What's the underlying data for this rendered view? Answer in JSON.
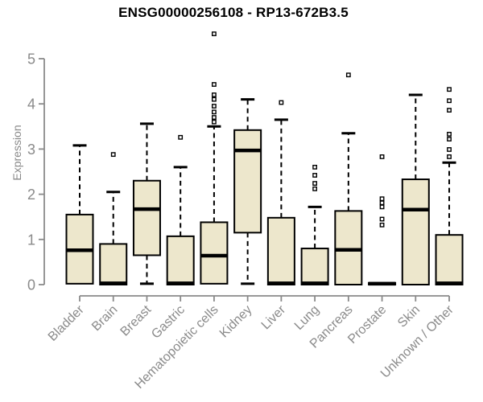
{
  "chart_data": {
    "type": "boxplot",
    "title": "ENSG00000256108 - RP13-672B3.5",
    "ylabel": "Expression",
    "xlabel": "",
    "ylim": [
      0,
      5
    ],
    "yticks": [
      0,
      1,
      2,
      3,
      4,
      5
    ],
    "grid": false,
    "legend": "none",
    "categories": [
      "Bladder",
      "Brain",
      "Breast",
      "Gastric",
      "Hematopoietic cells",
      "Kidney",
      "Liver",
      "Lung",
      "Pancreas",
      "Prostate",
      "Skin",
      "Unknown / Other"
    ],
    "boxes": [
      {
        "category": "Bladder",
        "whisker_low": 0.02,
        "q1": 0.02,
        "median": 0.76,
        "q3": 1.55,
        "whisker_high": 3.08,
        "outliers": []
      },
      {
        "category": "Brain",
        "whisker_low": 0.0,
        "q1": 0.0,
        "median": 0.03,
        "q3": 0.9,
        "whisker_high": 2.05,
        "outliers": [
          2.88
        ]
      },
      {
        "category": "Breast",
        "whisker_low": 0.02,
        "q1": 0.65,
        "median": 1.67,
        "q3": 2.3,
        "whisker_high": 3.56,
        "outliers": []
      },
      {
        "category": "Gastric",
        "whisker_low": 0.0,
        "q1": 0.0,
        "median": 0.03,
        "q3": 1.07,
        "whisker_high": 2.6,
        "outliers": [
          3.26
        ]
      },
      {
        "category": "Hematopoietic cells",
        "whisker_low": 0.02,
        "q1": 0.02,
        "median": 0.64,
        "q3": 1.38,
        "whisker_high": 3.5,
        "outliers": [
          5.55,
          4.43,
          4.2,
          4.1,
          3.95,
          3.82,
          3.7,
          3.6
        ]
      },
      {
        "category": "Kidney",
        "whisker_low": 0.02,
        "q1": 1.15,
        "median": 2.97,
        "q3": 3.42,
        "whisker_high": 4.1,
        "outliers": []
      },
      {
        "category": "Liver",
        "whisker_low": 0.0,
        "q1": 0.0,
        "median": 0.03,
        "q3": 1.48,
        "whisker_high": 3.65,
        "outliers": [
          4.03
        ]
      },
      {
        "category": "Lung",
        "whisker_low": 0.0,
        "q1": 0.0,
        "median": 0.03,
        "q3": 0.8,
        "whisker_high": 1.72,
        "outliers": [
          2.6,
          2.42,
          2.24,
          2.12
        ]
      },
      {
        "category": "Pancreas",
        "whisker_low": 0.0,
        "q1": 0.0,
        "median": 0.77,
        "q3": 1.63,
        "whisker_high": 3.35,
        "outliers": [
          4.64
        ]
      },
      {
        "category": "Prostate",
        "whisker_low": 0.0,
        "q1": 0.0,
        "median": 0.02,
        "q3": 0.04,
        "whisker_high": 0.04,
        "outliers": [
          2.83,
          1.9,
          1.81,
          1.72,
          1.45,
          1.32
        ]
      },
      {
        "category": "Skin",
        "whisker_low": 0.0,
        "q1": 0.0,
        "median": 1.66,
        "q3": 2.33,
        "whisker_high": 4.2,
        "outliers": []
      },
      {
        "category": "Unknown / Other",
        "whisker_low": 0.0,
        "q1": 0.0,
        "median": 0.03,
        "q3": 1.1,
        "whisker_high": 2.7,
        "outliers": [
          4.32,
          4.07,
          3.86,
          3.33,
          3.22,
          2.99,
          2.83
        ]
      }
    ],
    "colors": {
      "box_fill": "#EDE7CC",
      "box_border": "#000000",
      "axis": "#8A8A8A",
      "title": "#000000",
      "background": "#FFFFFF"
    }
  }
}
